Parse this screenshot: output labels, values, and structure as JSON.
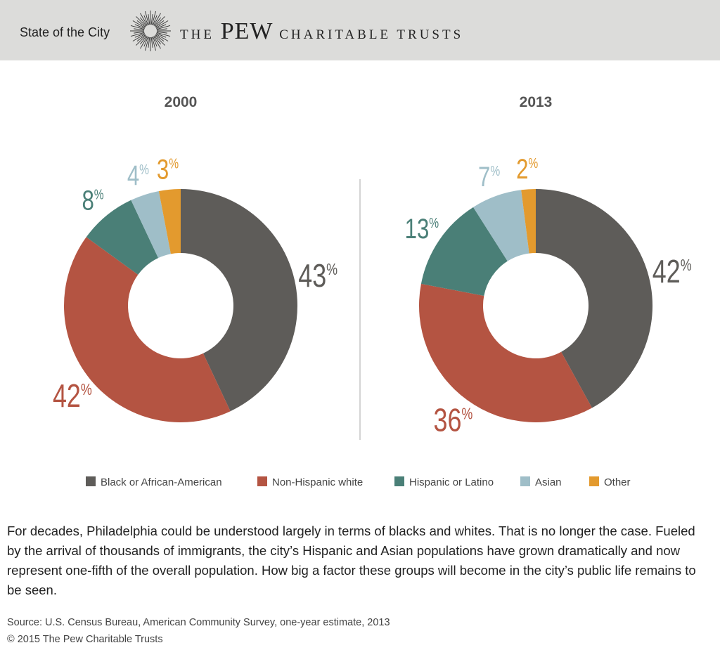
{
  "header": {
    "series_title": "State of the City",
    "brand_prefix": "THE",
    "brand_name": "PEW",
    "brand_suffix": "CHARITABLE TRUSTS",
    "logo_icon": "sunburst-logo-icon"
  },
  "chart_data": [
    {
      "type": "pie",
      "title": "2000",
      "categories": [
        "Black or African-American",
        "Non-Hispanic white",
        "Hispanic or Latino",
        "Asian",
        "Other"
      ],
      "values": [
        43,
        42,
        8,
        4,
        3
      ],
      "value_labels": [
        "43",
        "42",
        "8",
        "4",
        "3"
      ],
      "unit": "%"
    },
    {
      "type": "pie",
      "title": "2013",
      "categories": [
        "Black or African-American",
        "Non-Hispanic white",
        "Hispanic or Latino",
        "Asian",
        "Other"
      ],
      "values": [
        42,
        36,
        13,
        7,
        2
      ],
      "value_labels": [
        "42",
        "36",
        "13",
        "7",
        "2"
      ],
      "unit": "%"
    }
  ],
  "legend": [
    {
      "label": "Black or African-American",
      "color": "#5e5c59"
    },
    {
      "label": "Non-Hispanic white",
      "color": "#b45442"
    },
    {
      "label": "Hispanic or Latino",
      "color": "#4a7f77"
    },
    {
      "label": "Asian",
      "color": "#9fbec8"
    },
    {
      "label": "Other",
      "color": "#e39a2e"
    }
  ],
  "description": "For decades, Philadelphia could be understood largely in terms of blacks and whites. That is no longer the case. Fueled by the arrival of thousands of immigrants, the city’s Hispanic and Asian populations have grown dramatically and now represent one-fifth of the overall population. How big a factor these groups will become in the city’s public life remains to be seen.",
  "source": "Source: U.S. Census Bureau, American Community Survey, one-year estimate, 2013",
  "copyright": "© 2015 The Pew Charitable Trusts"
}
